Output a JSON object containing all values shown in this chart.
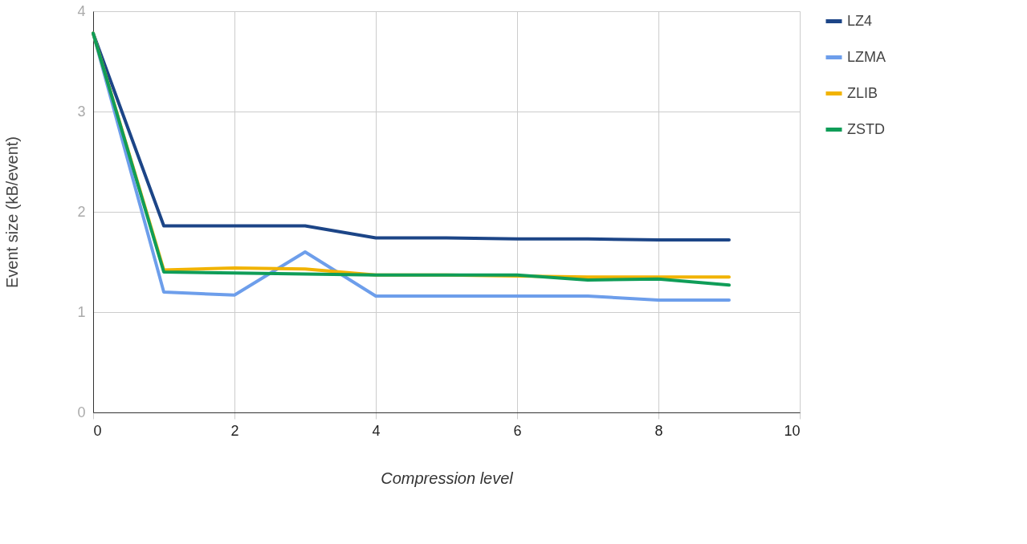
{
  "chart_data": {
    "type": "line",
    "xlabel": "Compression level",
    "ylabel": "Event size (kB/event)",
    "x": [
      0,
      1,
      2,
      3,
      4,
      5,
      6,
      7,
      8,
      9
    ],
    "series": [
      {
        "name": "LZ4",
        "color": "#1c4587",
        "values": [
          3.78,
          1.86,
          1.86,
          1.86,
          1.74,
          1.74,
          1.73,
          1.73,
          1.72,
          1.72
        ]
      },
      {
        "name": "LZMA",
        "color": "#6d9eeb",
        "values": [
          3.78,
          1.2,
          1.17,
          1.6,
          1.16,
          1.16,
          1.16,
          1.16,
          1.12,
          1.12
        ]
      },
      {
        "name": "ZLIB",
        "color": "#f1b300",
        "values": [
          3.78,
          1.42,
          1.44,
          1.43,
          1.37,
          1.37,
          1.36,
          1.35,
          1.35,
          1.35
        ]
      },
      {
        "name": "ZSTD",
        "color": "#0f9d58",
        "values": [
          3.78,
          1.4,
          1.39,
          1.38,
          1.37,
          1.37,
          1.37,
          1.32,
          1.33,
          1.27
        ]
      }
    ],
    "xlim": [
      0,
      10
    ],
    "xticks": [
      0,
      2,
      4,
      6,
      8,
      10
    ],
    "ylim": [
      0,
      4
    ],
    "yticks": [
      0,
      1,
      2,
      3,
      4
    ],
    "grid": true,
    "legend": "top right",
    "marker": "none",
    "line_style": "solid"
  }
}
